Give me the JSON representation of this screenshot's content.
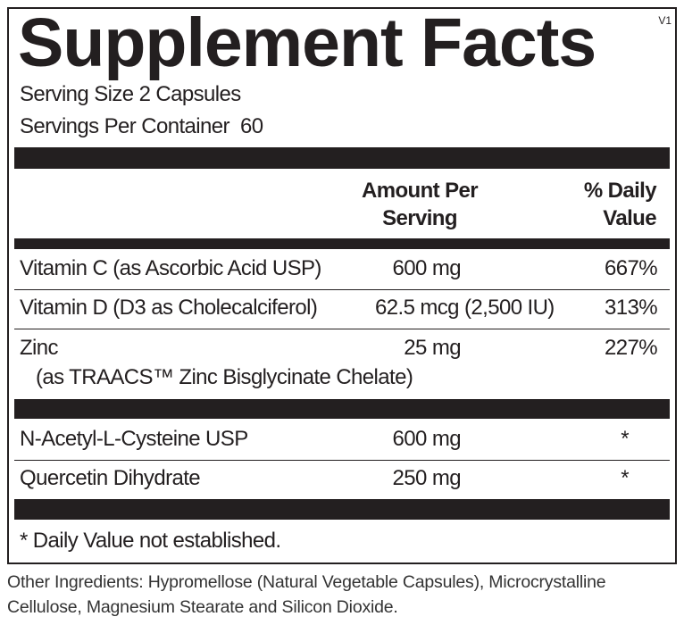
{
  "title": "Supplement Facts",
  "version": "V1",
  "serving_size": "Serving Size 2 Capsules",
  "servings_per_container": "Servings Per Container  60",
  "table": {
    "header": [
      "Amount Per Serving",
      "% Daily Value"
    ],
    "rows": [
      [
        "Vitamin C (as Ascorbic Acid USP)",
        "600 mg",
        "667%"
      ],
      [
        "Vitamin D (D3 as Cholecalciferol)",
        "62.5 mcg (2,500 IU)",
        "313%"
      ],
      [
        "Zinc",
        "25 mg",
        "227%",
        "(as TRAACS™ Zinc Bisglycinate Chelate)"
      ],
      [
        "N-Acetyl-L-Cysteine USP",
        "600 mg",
        "*"
      ],
      [
        "Quercetin Dihydrate",
        "250 mg",
        "*"
      ]
    ]
  },
  "footnote": "* Daily Value not established.",
  "other_ingredients": "Other Ingredients: Hypromellose (Natural Vegetable Capsules), Microcrystalline Cellulose, Magnesium Stearate and Silicon Dioxide."
}
